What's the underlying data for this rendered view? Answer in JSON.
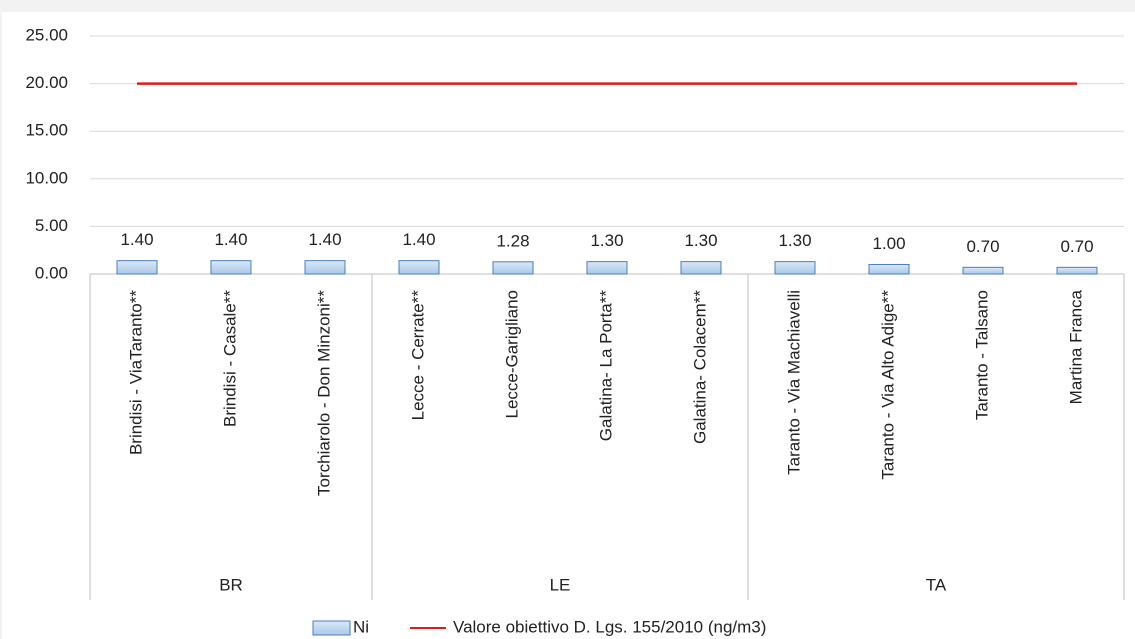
{
  "chart_data": {
    "type": "bar",
    "categories": [
      "Brindisi - ViaTaranto**",
      "Brindisi - Casale**",
      "Torchiarolo - Don Minzoni**",
      "Lecce - Cerrate**",
      "Lecce-Garigliano",
      "Galatina- La Porta**",
      "Galatina- Colacem**",
      "Taranto - Via Machiavelli",
      "Taranto - Via Alto Adige**",
      "Taranto - Talsano",
      "Martina Franca"
    ],
    "groups": [
      {
        "label": "BR",
        "count": 3
      },
      {
        "label": "LE",
        "count": 4
      },
      {
        "label": "TA",
        "count": 4
      }
    ],
    "series": [
      {
        "name": "Ni",
        "color": "#bdd7ee",
        "edge": "#4a7ebb",
        "values": [
          1.4,
          1.4,
          1.4,
          1.4,
          1.28,
          1.3,
          1.3,
          1.3,
          1.0,
          0.7,
          0.7
        ],
        "value_labels": [
          "1.40",
          "1.40",
          "1.40",
          "1.40",
          "1.28",
          "1.30",
          "1.30",
          "1.30",
          "1.00",
          "0.70",
          "0.70"
        ]
      }
    ],
    "lines": [
      {
        "name": "Valore obiettivo D. Lgs. 155/2010 (ng/m3)",
        "color": "#e31a1c",
        "value": 20
      }
    ],
    "ylim": [
      0,
      25
    ],
    "yticks": [
      {
        "value": 0,
        "label": "0.00"
      },
      {
        "value": 5,
        "label": "5.00"
      },
      {
        "value": 10,
        "label": "10.00"
      },
      {
        "value": 15,
        "label": "15.00"
      },
      {
        "value": 20,
        "label": "20.00"
      },
      {
        "value": 25,
        "label": "25.00"
      }
    ],
    "grid": true
  }
}
